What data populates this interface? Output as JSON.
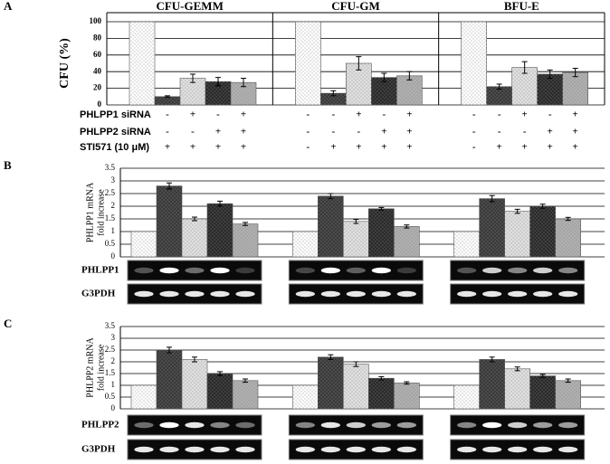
{
  "chart_data": [
    {
      "type": "bar",
      "panel": "A",
      "ylabel": "CFU (%)",
      "categories": [
        "CFU-GEMM",
        "CFU-GM",
        "BFU-E"
      ],
      "ylim": [
        0,
        100
      ],
      "yticks": [
        0,
        20,
        40,
        60,
        80,
        100
      ],
      "grid": true,
      "series": [
        {
          "color": "#ffffff",
          "values": [
            100,
            100,
            100
          ],
          "errors": [
            null,
            null,
            null
          ]
        },
        {
          "color": "#3a3a3a",
          "values": [
            10,
            14,
            22
          ],
          "errors": [
            1,
            3,
            3
          ]
        },
        {
          "color": "#e0e0e0",
          "values": [
            32,
            50,
            45
          ],
          "errors": [
            5,
            8,
            7
          ]
        },
        {
          "color": "#2a2a2a",
          "values": [
            28,
            33,
            37
          ],
          "errors": [
            5,
            5,
            5
          ]
        },
        {
          "color": "#b0b0b0",
          "values": [
            27,
            35,
            39
          ],
          "errors": [
            5,
            5,
            5
          ]
        }
      ],
      "conditions": [
        {
          "label": "PHLPP1 siRNA",
          "signs": [
            "-",
            "-",
            "+",
            "-",
            "+",
            "-",
            "-",
            "+",
            "-",
            "+",
            "-",
            "-",
            "+",
            "-",
            "+"
          ]
        },
        {
          "label": "PHLPP2 siRNA",
          "signs": [
            "-",
            "-",
            "-",
            "+",
            "+",
            "-",
            "-",
            "-",
            "+",
            "+",
            "-",
            "-",
            "-",
            "+",
            "+"
          ]
        },
        {
          "label": "STI571 (10 μM)",
          "signs": [
            "-",
            "+",
            "+",
            "+",
            "+",
            "-",
            "+",
            "+",
            "+",
            "+",
            "-",
            "+",
            "+",
            "+",
            "+"
          ]
        }
      ]
    },
    {
      "type": "bar",
      "panel": "B",
      "ylabel": [
        "PHLPP1 mRNA",
        "fold increase"
      ],
      "ylim": [
        0,
        3.5
      ],
      "yticks": [
        0,
        0.5,
        1,
        1.5,
        2,
        2.5,
        3,
        3.5
      ],
      "grid": true,
      "series": [
        {
          "color": "#ffffff",
          "values": [
            1,
            1,
            1
          ],
          "errors": [
            null,
            null,
            null
          ]
        },
        {
          "color": "#3a3a3a",
          "values": [
            2.8,
            2.4,
            2.3
          ],
          "errors": [
            0.12,
            0.1,
            0.12
          ]
        },
        {
          "color": "#e0e0e0",
          "values": [
            1.5,
            1.4,
            1.8
          ],
          "errors": [
            0.07,
            0.08,
            0.08
          ]
        },
        {
          "color": "#2a2a2a",
          "values": [
            2.1,
            1.9,
            2.0
          ],
          "errors": [
            0.1,
            0.05,
            0.08
          ]
        },
        {
          "color": "#b0b0b0",
          "values": [
            1.3,
            1.2,
            1.5
          ],
          "errors": [
            0.06,
            0.06,
            0.06
          ]
        }
      ],
      "gels": [
        "PHLPP1",
        "G3PDH"
      ]
    },
    {
      "type": "bar",
      "panel": "C",
      "ylabel": [
        "PHLPP2 mRNA",
        "fold increase"
      ],
      "ylim": [
        0,
        3.5
      ],
      "yticks": [
        0,
        0.5,
        1,
        1.5,
        2,
        2.5,
        3,
        3.5
      ],
      "grid": true,
      "series": [
        {
          "color": "#ffffff",
          "values": [
            1,
            1,
            1
          ],
          "errors": [
            null,
            null,
            null
          ]
        },
        {
          "color": "#3a3a3a",
          "values": [
            2.5,
            2.2,
            2.1
          ],
          "errors": [
            0.12,
            0.1,
            0.1
          ]
        },
        {
          "color": "#e0e0e0",
          "values": [
            2.1,
            1.9,
            1.7
          ],
          "errors": [
            0.1,
            0.1,
            0.08
          ]
        },
        {
          "color": "#2a2a2a",
          "values": [
            1.5,
            1.3,
            1.4
          ],
          "errors": [
            0.08,
            0.07,
            0.06
          ]
        },
        {
          "color": "#b0b0b0",
          "values": [
            1.2,
            1.1,
            1.2
          ],
          "errors": [
            0.07,
            0.05,
            0.07
          ]
        }
      ],
      "gels": [
        "PHLPP2",
        "G3PDH"
      ]
    }
  ]
}
